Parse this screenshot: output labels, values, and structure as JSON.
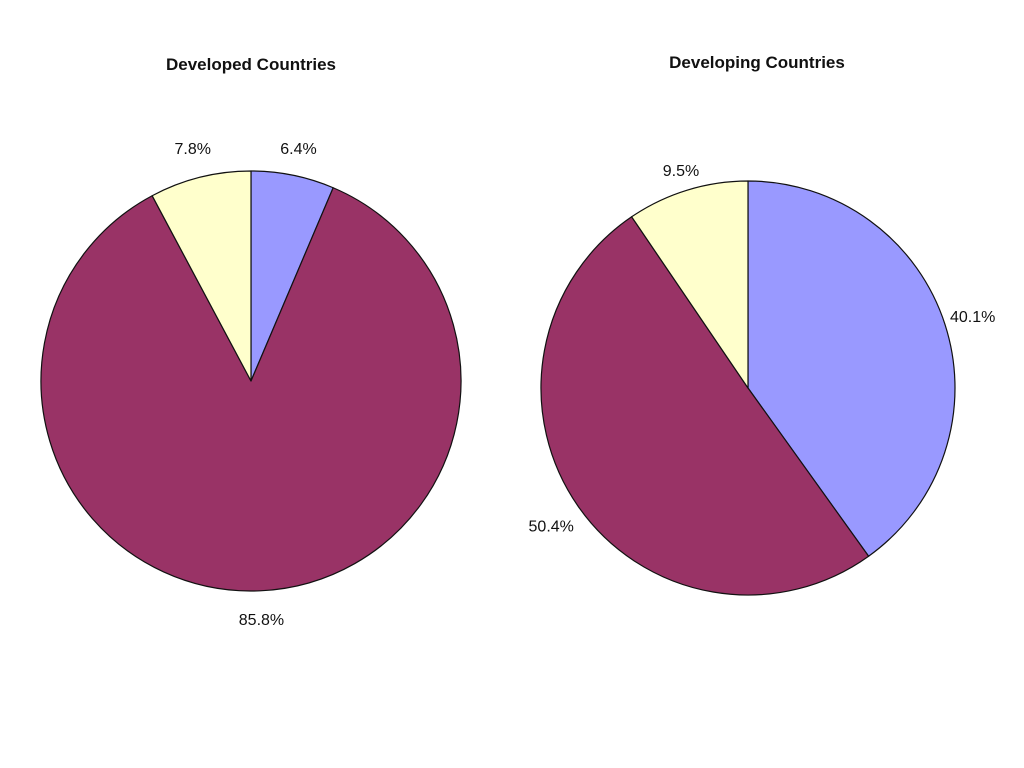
{
  "chart_data": [
    {
      "type": "pie",
      "title": "Developed Countries",
      "slices": [
        {
          "value": 6.4,
          "label": "6.4%",
          "color": "#9999ff"
        },
        {
          "value": 85.8,
          "label": "85.8%",
          "color": "#993366"
        },
        {
          "value": 7.8,
          "label": "7.8%",
          "color": "#ffffcc"
        }
      ]
    },
    {
      "type": "pie",
      "title": "Developing Countries",
      "slices": [
        {
          "value": 40.1,
          "label": "40.1%",
          "color": "#9999ff"
        },
        {
          "value": 50.4,
          "label": "50.4%",
          "color": "#993366"
        },
        {
          "value": 9.5,
          "label": "9.5%",
          "color": "#ffffcc"
        }
      ]
    }
  ]
}
